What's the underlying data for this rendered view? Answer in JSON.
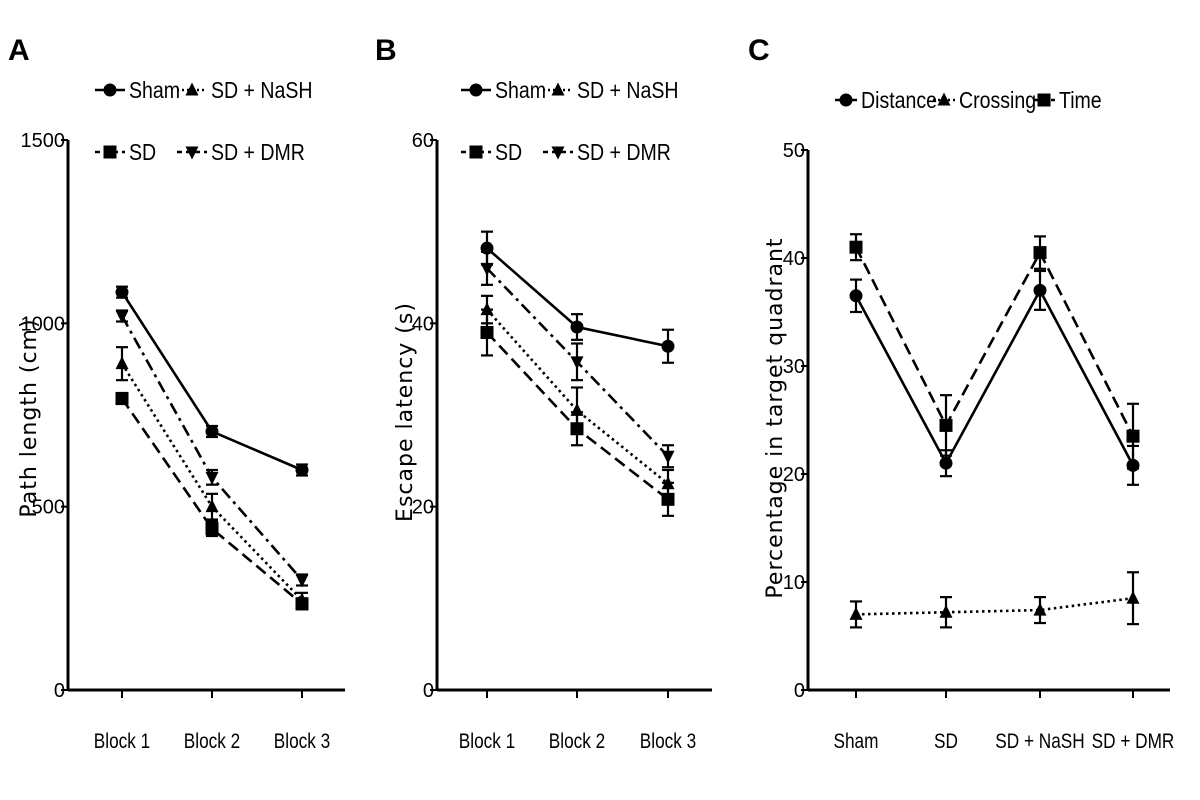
{
  "chart_data": [
    {
      "panel_label": "A",
      "type": "line",
      "categories": [
        "Block 1",
        "Block 2",
        "Block 3"
      ],
      "ylabel": "Path length (cm)",
      "ylim": [
        0,
        1500
      ],
      "yticks": [
        "0",
        "500",
        "1000",
        "1500"
      ],
      "legend_columns": 2,
      "series": [
        {
          "name": "Sham",
          "marker": "circle",
          "dash": "solid",
          "values": [
            1085,
            705,
            600
          ],
          "err": [
            15,
            15,
            15
          ]
        },
        {
          "name": "SD",
          "marker": "square",
          "dash": "dashed",
          "values": [
            795,
            440,
            235
          ],
          "err": [
            15,
            20,
            15
          ]
        },
        {
          "name": "SD + NaSH",
          "marker": "triangle-up",
          "dash": "dotted",
          "values": [
            890,
            500,
            245
          ],
          "err": [
            45,
            35,
            20
          ]
        },
        {
          "name": "SD + DMR",
          "marker": "triangle-down",
          "dash": "dashdot",
          "values": [
            1020,
            580,
            300
          ],
          "err": [
            15,
            20,
            15
          ]
        }
      ]
    },
    {
      "panel_label": "B",
      "type": "line",
      "categories": [
        "Block 1",
        "Block 2",
        "Block 3"
      ],
      "ylabel": "Escape latency (s)",
      "ylim": [
        0,
        60
      ],
      "yticks": [
        "0",
        "20",
        "40",
        "60"
      ],
      "legend_columns": 2,
      "series": [
        {
          "name": "Sham",
          "marker": "circle",
          "dash": "solid",
          "values": [
            48.2,
            39.6,
            37.5
          ],
          "err": [
            1.8,
            1.4,
            1.8
          ]
        },
        {
          "name": "SD",
          "marker": "square",
          "dash": "dashed",
          "values": [
            39.0,
            28.5,
            20.8
          ],
          "err": [
            2.5,
            1.8,
            1.8
          ]
        },
        {
          "name": "SD + NaSH",
          "marker": "triangle-up",
          "dash": "dotted",
          "values": [
            41.5,
            30.5,
            22.5
          ],
          "err": [
            1.5,
            2.5,
            1.5
          ]
        },
        {
          "name": "SD + DMR",
          "marker": "triangle-down",
          "dash": "dashdot",
          "values": [
            46.0,
            35.8,
            25.5
          ],
          "err": [
            1.8,
            2.0,
            1.2
          ]
        }
      ]
    },
    {
      "panel_label": "C",
      "type": "line",
      "categories": [
        "Sham",
        "SD",
        "SD + NaSH",
        "SD + DMR"
      ],
      "ylabel": "Percentage in target quadrant",
      "ylim": [
        0,
        50
      ],
      "yticks": [
        "0",
        "10",
        "20",
        "30",
        "40",
        "50"
      ],
      "legend_columns": 3,
      "series": [
        {
          "name": "Distance",
          "marker": "circle",
          "dash": "solid",
          "values": [
            36.5,
            21.0,
            37.0,
            20.8
          ],
          "err": [
            1.5,
            1.2,
            1.8,
            1.8
          ]
        },
        {
          "name": "Crossing",
          "marker": "triangle-up",
          "dash": "dotted",
          "values": [
            7.0,
            7.2,
            7.4,
            8.5
          ],
          "err": [
            1.2,
            1.4,
            1.2,
            2.4
          ]
        },
        {
          "name": "Time",
          "marker": "square",
          "dash": "dashed",
          "values": [
            41.0,
            24.5,
            40.5,
            23.5
          ],
          "err": [
            1.2,
            2.8,
            1.5,
            3.0
          ]
        }
      ]
    }
  ]
}
